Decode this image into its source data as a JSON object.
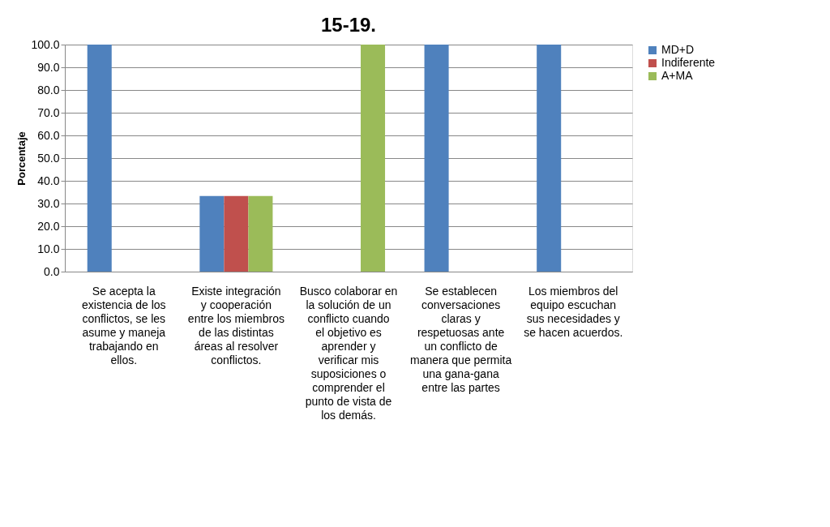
{
  "chart_data": {
    "type": "bar",
    "title": "15-19.",
    "ylabel": "Porcentaje",
    "categories": [
      "Se acepta la existencia de los conflictos, se les asume y maneja trabajando en ellos.",
      "Existe integración y cooperación entre los miembros de las distintas áreas al resolver conflictos.",
      "Busco colaborar en la solución de un conflicto cuando el objetivo es aprender y verificar mis suposiciones o comprender el punto de vista de los demás.",
      "Se establecen conversaciones claras y respetuosas ante un conflicto de manera que permita una gana-gana entre las partes",
      "Los miembros del equipo escuchan sus necesidades y se hacen acuerdos."
    ],
    "series": [
      {
        "name": "MD+D",
        "color": "#4f81bd",
        "values": [
          100,
          33.3,
          0,
          100,
          100
        ]
      },
      {
        "name": "Indiferente",
        "color": "#c0504d",
        "values": [
          0,
          33.3,
          0,
          0,
          0
        ]
      },
      {
        "name": "A+MA",
        "color": "#9bbb59",
        "values": [
          0,
          33.3,
          100,
          0,
          0
        ]
      }
    ],
    "ylim": [
      0,
      100
    ],
    "yticks": [
      {
        "value": 0,
        "label": "0.0"
      },
      {
        "value": 10,
        "label": "10.0"
      },
      {
        "value": 20,
        "label": "20.0"
      },
      {
        "value": 30,
        "label": "30.0"
      },
      {
        "value": 40,
        "label": "40.0"
      },
      {
        "value": 50,
        "label": "50.0"
      },
      {
        "value": 60,
        "label": "60.0"
      },
      {
        "value": 70,
        "label": "70.0"
      },
      {
        "value": 80,
        "label": "80.0"
      },
      {
        "value": 90,
        "label": "90.0"
      },
      {
        "value": 100,
        "label": "100.0"
      }
    ],
    "grid": "y",
    "legend": "right"
  }
}
